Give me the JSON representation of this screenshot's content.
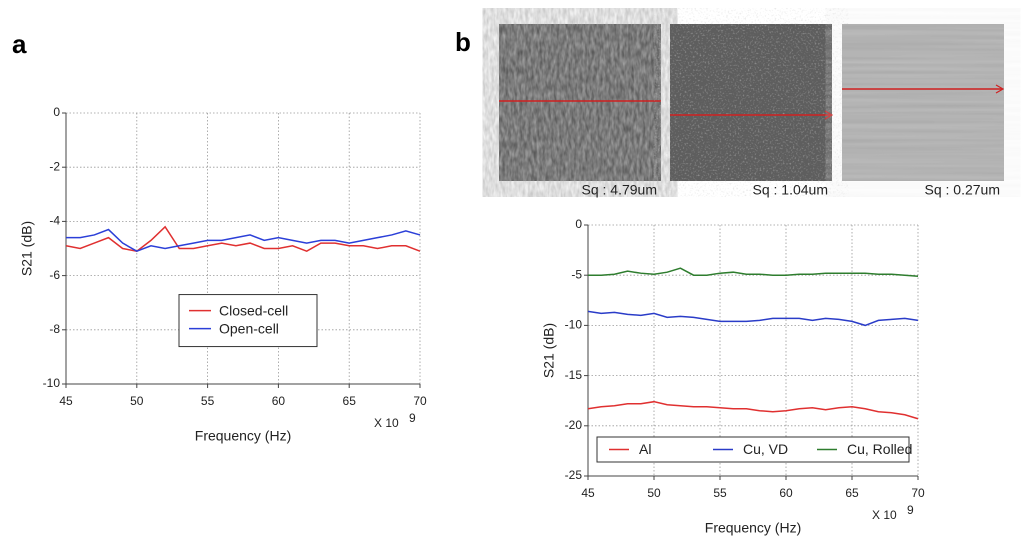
{
  "panel_labels": [
    "a",
    "b"
  ],
  "images": [
    {
      "caption": "Sq : 4.79um"
    },
    {
      "caption": "Sq : 1.04um"
    },
    {
      "caption": "Sq : 0.27um"
    }
  ],
  "chart_data": [
    {
      "type": "line",
      "xlabel": "Frequency (Hz)",
      "ylabel": "S21 (dB)",
      "x_multiplier": {
        "base": "X 10",
        "exponent": "9"
      },
      "x": [
        45,
        46,
        47,
        48,
        49,
        50,
        51,
        52,
        53,
        54,
        55,
        56,
        57,
        58,
        59,
        60,
        61,
        62,
        63,
        64,
        65,
        66,
        67,
        68,
        69,
        70
      ],
      "xlim": [
        45,
        70
      ],
      "xticks": [
        45,
        50,
        55,
        60,
        65,
        70
      ],
      "ylim": [
        -10,
        0
      ],
      "yticks": [
        -10,
        -8,
        -6,
        -4,
        -2,
        0
      ],
      "grid": true,
      "legend": "center",
      "series": [
        {
          "name": "Closed-cell",
          "color": "#e03030",
          "values": [
            -4.9,
            -5.0,
            -4.8,
            -4.6,
            -5.0,
            -5.1,
            -4.7,
            -4.2,
            -5.0,
            -5.0,
            -4.9,
            -4.8,
            -4.9,
            -4.8,
            -5.0,
            -5.0,
            -4.9,
            -5.1,
            -4.8,
            -4.8,
            -4.9,
            -4.9,
            -5.0,
            -4.9,
            -4.9,
            -5.1
          ]
        },
        {
          "name": "Open-cell",
          "color": "#2b3fd8",
          "values": [
            -4.6,
            -4.6,
            -4.5,
            -4.3,
            -4.8,
            -5.1,
            -4.9,
            -5.0,
            -4.9,
            -4.8,
            -4.7,
            -4.7,
            -4.6,
            -4.5,
            -4.7,
            -4.6,
            -4.7,
            -4.8,
            -4.7,
            -4.7,
            -4.8,
            -4.7,
            -4.6,
            -4.5,
            -4.35,
            -4.5
          ]
        }
      ]
    },
    {
      "type": "line",
      "xlabel": "Frequency (Hz)",
      "ylabel": "S21 (dB)",
      "x_multiplier": {
        "base": "X 10",
        "exponent": "9"
      },
      "x": [
        45,
        46,
        47,
        48,
        49,
        50,
        51,
        52,
        53,
        54,
        55,
        56,
        57,
        58,
        59,
        60,
        61,
        62,
        63,
        64,
        65,
        66,
        67,
        68,
        69,
        70
      ],
      "xlim": [
        45,
        70
      ],
      "xticks": [
        45,
        50,
        55,
        60,
        65,
        70
      ],
      "ylim": [
        -25,
        0
      ],
      "yticks": [
        -25,
        -20,
        -15,
        -10,
        -5,
        0
      ],
      "grid": true,
      "legend": "lower center",
      "series": [
        {
          "name": "Al",
          "color": "#e03030",
          "values": [
            -18.3,
            -18.1,
            -18.0,
            -17.8,
            -17.8,
            -17.6,
            -17.9,
            -18.0,
            -18.1,
            -18.1,
            -18.2,
            -18.3,
            -18.3,
            -18.5,
            -18.6,
            -18.5,
            -18.3,
            -18.2,
            -18.4,
            -18.2,
            -18.1,
            -18.3,
            -18.6,
            -18.7,
            -18.9,
            -19.3
          ]
        },
        {
          "name": "Cu, VD",
          "color": "#2a3cc8",
          "values": [
            -8.6,
            -8.8,
            -8.7,
            -8.9,
            -9.0,
            -8.8,
            -9.2,
            -9.1,
            -9.2,
            -9.4,
            -9.6,
            -9.6,
            -9.6,
            -9.5,
            -9.3,
            -9.3,
            -9.3,
            -9.5,
            -9.3,
            -9.4,
            -9.6,
            -10.0,
            -9.5,
            -9.4,
            -9.3,
            -9.5
          ]
        },
        {
          "name": "Cu, Rolled",
          "color": "#2e7d2e",
          "values": [
            -5.0,
            -5.0,
            -4.9,
            -4.6,
            -4.8,
            -4.9,
            -4.7,
            -4.3,
            -5.0,
            -5.0,
            -4.8,
            -4.7,
            -4.9,
            -4.9,
            -5.0,
            -5.0,
            -4.9,
            -4.9,
            -4.8,
            -4.8,
            -4.8,
            -4.8,
            -4.9,
            -4.9,
            -5.0,
            -5.1
          ]
        }
      ]
    }
  ]
}
